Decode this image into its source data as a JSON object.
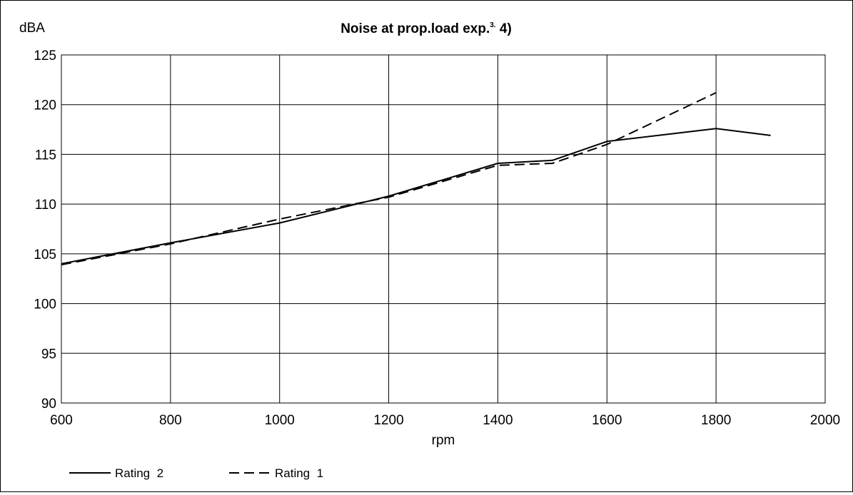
{
  "chart_data": {
    "type": "line",
    "title": "Noise at prop.load exp.",
    "title_superscript": "3.",
    "title_suffix": " 4)",
    "xlabel": "rpm",
    "ylabel": "dBA",
    "xlim": [
      600,
      2000
    ],
    "ylim": [
      90,
      125
    ],
    "xticks": [
      600,
      800,
      1000,
      1200,
      1400,
      1600,
      1800,
      2000
    ],
    "yticks": [
      90,
      95,
      100,
      105,
      110,
      115,
      120,
      125
    ],
    "grid": true,
    "legend_position": "bottom-left",
    "series": [
      {
        "name": "Rating  2",
        "style": "solid",
        "color": "#000000",
        "x": [
          600,
          800,
          1000,
          1200,
          1400,
          1500,
          1600,
          1800,
          1900
        ],
        "y": [
          104.0,
          106.1,
          108.1,
          110.8,
          114.1,
          114.4,
          116.3,
          117.6,
          116.9
        ]
      },
      {
        "name": "Rating  1",
        "style": "dashed",
        "color": "#000000",
        "x": [
          600,
          800,
          1000,
          1200,
          1400,
          1500,
          1600,
          1800
        ],
        "y": [
          103.9,
          106.0,
          108.5,
          110.7,
          113.9,
          114.1,
          116.0,
          121.2
        ]
      }
    ]
  }
}
